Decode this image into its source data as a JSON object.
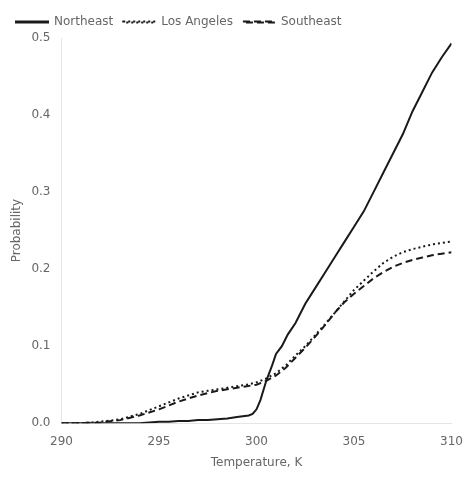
{
  "chart_data": {
    "type": "line",
    "xlabel": "Temperature, K",
    "ylabel": "Probability",
    "xlim": [
      290,
      310
    ],
    "ylim": [
      0,
      0.5
    ],
    "xticks": [
      290,
      295,
      300,
      305,
      310
    ],
    "yticks": [
      {
        "value": 0,
        "label": "0.0"
      },
      0.1,
      0.2,
      0.3,
      0.4,
      0.5
    ],
    "grid": false,
    "legend": "upper left",
    "series": [
      {
        "name": "Northeast",
        "color": "#1a1a1a",
        "line_style": "solid",
        "x": [
          290,
          291,
          292,
          293,
          294,
          294.5,
          295,
          295.5,
          296,
          296.5,
          297,
          297.5,
          298,
          298.5,
          299,
          299.3,
          299.6,
          299.8,
          300,
          300.2,
          300.5,
          300.8,
          301,
          301.3,
          301.6,
          302,
          302.5,
          303,
          303.5,
          304,
          304.5,
          305,
          305.5,
          306,
          306.5,
          307,
          307.5,
          308,
          308.5,
          309,
          309.5,
          310
        ],
        "values": [
          0.0,
          0.0,
          0.0,
          0.0,
          0.0,
          0.001,
          0.002,
          0.002,
          0.003,
          0.003,
          0.004,
          0.004,
          0.005,
          0.006,
          0.008,
          0.009,
          0.01,
          0.012,
          0.018,
          0.03,
          0.055,
          0.075,
          0.09,
          0.1,
          0.115,
          0.13,
          0.155,
          0.175,
          0.195,
          0.215,
          0.235,
          0.255,
          0.275,
          0.3,
          0.325,
          0.35,
          0.375,
          0.405,
          0.43,
          0.455,
          0.475,
          0.493
        ]
      },
      {
        "name": "Los Angeles",
        "color": "#1a1a1a",
        "line_style": "dotted",
        "x": [
          290,
          291,
          292,
          293,
          294,
          295,
          295.5,
          296,
          296.5,
          297,
          297.5,
          298,
          298.5,
          299,
          299.5,
          300,
          300.5,
          301,
          301.5,
          302,
          302.5,
          303,
          303.5,
          304,
          304.5,
          305,
          305.5,
          306,
          306.5,
          307,
          307.5,
          308,
          308.5,
          309,
          309.5,
          310
        ],
        "values": [
          0.0,
          0.0,
          0.002,
          0.005,
          0.012,
          0.022,
          0.027,
          0.032,
          0.036,
          0.04,
          0.042,
          0.044,
          0.046,
          0.048,
          0.05,
          0.053,
          0.058,
          0.065,
          0.075,
          0.088,
          0.1,
          0.114,
          0.128,
          0.143,
          0.158,
          0.173,
          0.185,
          0.197,
          0.208,
          0.216,
          0.222,
          0.226,
          0.229,
          0.232,
          0.234,
          0.236
        ]
      },
      {
        "name": "Southeast",
        "color": "#1a1a1a",
        "line_style": "dashed",
        "x": [
          290,
          291,
          292,
          293,
          294,
          295,
          295.5,
          296,
          296.5,
          297,
          297.5,
          298,
          298.5,
          299,
          299.5,
          300,
          300.5,
          301,
          301.5,
          302,
          302.5,
          303,
          303.5,
          304,
          304.5,
          305,
          305.5,
          306,
          306.5,
          307,
          307.5,
          308,
          308.5,
          309,
          309.5,
          310
        ],
        "values": [
          0.0,
          0.0,
          0.001,
          0.004,
          0.01,
          0.018,
          0.023,
          0.028,
          0.032,
          0.036,
          0.039,
          0.042,
          0.044,
          0.046,
          0.048,
          0.05,
          0.055,
          0.062,
          0.072,
          0.085,
          0.098,
          0.112,
          0.127,
          0.143,
          0.157,
          0.168,
          0.178,
          0.188,
          0.196,
          0.203,
          0.208,
          0.212,
          0.215,
          0.218,
          0.22,
          0.222
        ]
      }
    ]
  }
}
